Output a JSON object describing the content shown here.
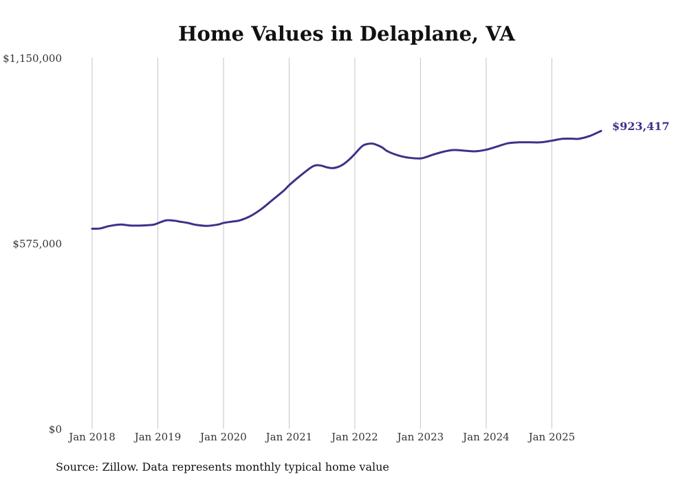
{
  "chart_data": {
    "type": "line",
    "title": "Home Values in Delaplane, VA",
    "xlabel": "",
    "ylabel": "",
    "ylim": [
      0,
      1150000
    ],
    "yticks": [
      {
        "value": 0,
        "label": "$0"
      },
      {
        "value": 575000,
        "label": "$575,000"
      },
      {
        "value": 1150000,
        "label": "$1,150,000"
      }
    ],
    "xticks": [
      {
        "value": 2018.0,
        "label": "Jan 2018"
      },
      {
        "value": 2019.0,
        "label": "Jan 2019"
      },
      {
        "value": 2020.0,
        "label": "Jan 2020"
      },
      {
        "value": 2021.0,
        "label": "Jan 2021"
      },
      {
        "value": 2022.0,
        "label": "Jan 2022"
      },
      {
        "value": 2023.0,
        "label": "Jan 2023"
      },
      {
        "value": 2024.0,
        "label": "Jan 2024"
      },
      {
        "value": 2025.0,
        "label": "Jan 2025"
      }
    ],
    "xlim": [
      2018.0,
      2025.75
    ],
    "grid": "vertical",
    "series": [
      {
        "name": "Typical home value",
        "color": "#3b3289",
        "end_label": "$923,417",
        "x": [
          2018.0,
          2018.125,
          2018.25,
          2018.417,
          2018.583,
          2018.75,
          2018.917,
          2019.0,
          2019.125,
          2019.25,
          2019.333,
          2019.458,
          2019.583,
          2019.75,
          2019.917,
          2020.0,
          2020.125,
          2020.25,
          2020.417,
          2020.583,
          2020.75,
          2020.917,
          2021.0,
          2021.167,
          2021.333,
          2021.417,
          2021.5,
          2021.583,
          2021.667,
          2021.75,
          2021.833,
          2021.917,
          2022.0,
          2022.125,
          2022.25,
          2022.333,
          2022.417,
          2022.5,
          2022.667,
          2022.833,
          2023.0,
          2023.083,
          2023.167,
          2023.333,
          2023.5,
          2023.667,
          2023.833,
          2024.0,
          2024.167,
          2024.333,
          2024.5,
          2024.667,
          2024.833,
          2025.0,
          2025.167,
          2025.333,
          2025.417,
          2025.583,
          2025.75
        ],
        "values": [
          620000,
          621000,
          628000,
          633000,
          630000,
          630000,
          632000,
          637000,
          646000,
          645000,
          642000,
          638000,
          632000,
          629000,
          633000,
          638000,
          642000,
          646000,
          660000,
          682000,
          710000,
          738000,
          755000,
          784000,
          810000,
          817000,
          815000,
          810000,
          808000,
          812000,
          821000,
          835000,
          852000,
          878000,
          884000,
          880000,
          872000,
          860000,
          847000,
          840000,
          838000,
          842000,
          848000,
          858000,
          864000,
          862000,
          860000,
          865000,
          875000,
          885000,
          888000,
          888000,
          888000,
          893000,
          899000,
          899000,
          899000,
          908000,
          923417
        ]
      }
    ],
    "source": "Source: Zillow. Data represents monthly typical home value"
  }
}
